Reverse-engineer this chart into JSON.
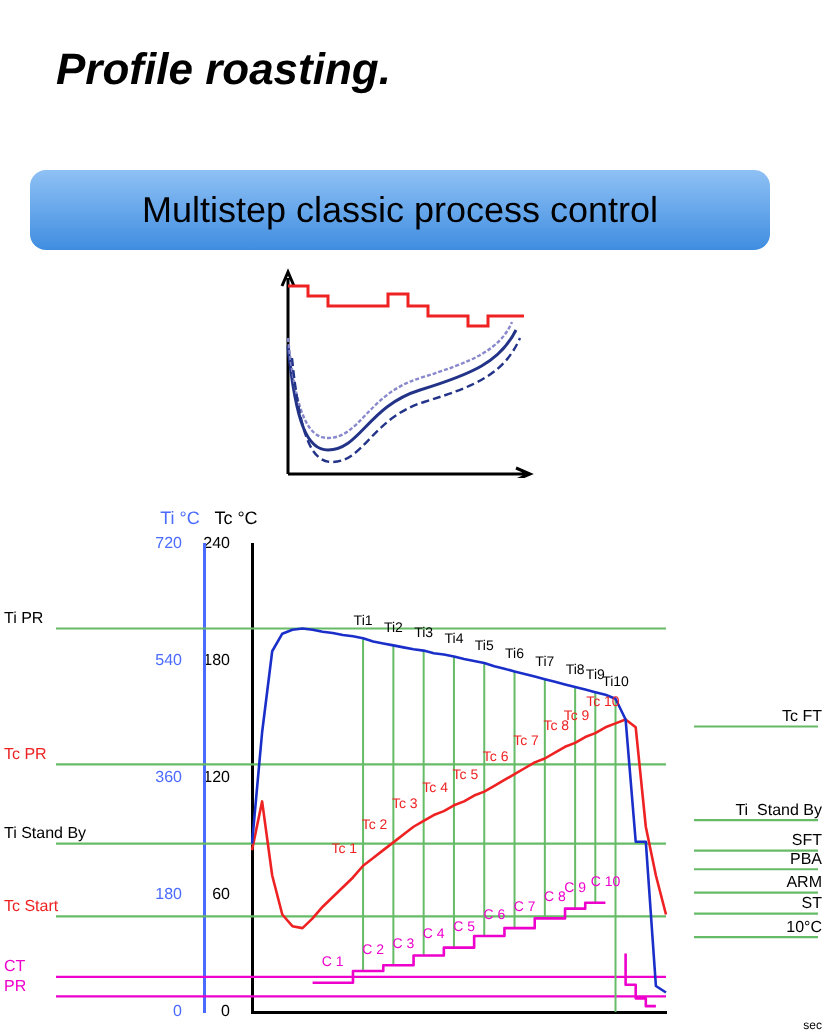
{
  "chart_data": {
    "type": "line",
    "title": "Profile roasting.",
    "subtitle": "Multistep classic process control",
    "ylabel": "Tc °C",
    "y2label": "Ti °C",
    "categories": [
      null,
      null,
      null,
      null,
      null,
      null,
      null,
      null,
      null,
      null,
      null,
      null,
      null,
      null,
      null,
      null,
      null,
      null,
      null,
      null,
      null,
      null,
      null,
      null,
      null,
      null,
      null,
      null,
      null,
      null,
      null,
      null,
      null,
      null,
      null,
      null,
      null,
      null,
      null,
      null,
      null,
      null
    ],
    "series": [
      {
        "axis": "y2",
        "color": "#1a2fc9",
        "values": [
          259,
          430,
          555,
          582,
          588,
          590,
          588,
          585,
          583,
          580,
          578,
          575,
          570,
          567,
          564,
          561,
          558,
          556,
          552,
          550,
          547,
          543,
          540,
          537,
          532,
          528,
          524,
          520,
          516,
          512,
          508,
          504,
          500,
          496,
          492,
          488,
          482,
          450,
          262,
          262,
          40,
          30
        ],
        "value_labels": [
          null,
          null,
          null,
          null,
          null,
          null,
          null,
          null,
          null,
          null,
          null,
          "Ti1",
          null,
          null,
          "Ti2",
          null,
          null,
          "Ti3",
          null,
          null,
          "Ti4",
          null,
          null,
          "Ti5",
          null,
          null,
          "Ti6",
          null,
          null,
          "Ti7",
          null,
          null,
          "Ti8",
          null,
          "Ti9",
          null,
          "Ti10",
          null,
          null,
          null,
          null,
          null
        ]
      },
      {
        "color": "#ee2222",
        "values": [
          83,
          108,
          70,
          50,
          44,
          43,
          48,
          54,
          59,
          64,
          69,
          75,
          79,
          83,
          87,
          91,
          95,
          98,
          101,
          103,
          106,
          108,
          111,
          113,
          116,
          119,
          122,
          125,
          128,
          130,
          133,
          136,
          138,
          141,
          143,
          146,
          148,
          150,
          146,
          95,
          70,
          50
        ],
        "value_labels": [
          null,
          null,
          null,
          null,
          null,
          null,
          null,
          null,
          null,
          null,
          null,
          "Tc 1",
          null,
          null,
          "Tc 2",
          null,
          null,
          "Tc 3",
          null,
          null,
          "Tc 4",
          null,
          null,
          "Tc 5",
          null,
          null,
          "Tc 6",
          null,
          null,
          "Tc 7",
          null,
          null,
          "Tc 8",
          null,
          "Tc 9",
          null,
          null,
          "Tc 10",
          null,
          null,
          null,
          null
        ]
      },
      {
        "type": "step",
        "color": "#ee00cc",
        "values": [
          null,
          null,
          null,
          null,
          null,
          null,
          15,
          15,
          15,
          15,
          15,
          21,
          21,
          21,
          24,
          24,
          24,
          29,
          29,
          29,
          33,
          33,
          33,
          39,
          39,
          39,
          43,
          43,
          43,
          48,
          48,
          48,
          53,
          53,
          56,
          56,
          null,
          30,
          14,
          7,
          3,
          null
        ],
        "value_labels": [
          null,
          null,
          null,
          null,
          null,
          null,
          null,
          null,
          "C 1",
          null,
          null,
          null,
          "C 2",
          null,
          null,
          "C 3",
          null,
          null,
          "C 4",
          null,
          null,
          "C 5",
          null,
          null,
          "C 6",
          null,
          null,
          "C 7",
          null,
          null,
          "C 8",
          null,
          "C 9",
          null,
          null,
          "C 10",
          null,
          null,
          null,
          null,
          null,
          null
        ]
      }
    ],
    "ylim": [
      0,
      240
    ],
    "yticks": [
      0,
      60,
      120,
      180,
      240
    ],
    "y2lim": [
      0,
      720
    ],
    "y2ticks": [
      0,
      180,
      360,
      540,
      720
    ],
    "ref_lines": [
      {
        "axis": "y2",
        "value": 590,
        "label": "Ti PR"
      },
      {
        "axis": "y",
        "value": 127,
        "label": "Tc PR"
      },
      {
        "axis": "y2",
        "value": 259,
        "label": "Ti Stand By"
      },
      {
        "axis": "y",
        "value": 49,
        "label": "Tc Start"
      },
      {
        "axis": "y",
        "value": 18,
        "label": "CT",
        "color": "#ee00cc"
      },
      {
        "axis": "y",
        "value": 8,
        "label": "PR",
        "color": "#ee00cc"
      }
    ],
    "annotations": [
      "Tc FT",
      "Ti  Stand By",
      "SFT",
      "PBA",
      "ARM",
      "ST",
      "10°C",
      "sec"
    ],
    "tick_labels": "y",
    "marker": "none",
    "grid": false,
    "legend": false
  }
}
